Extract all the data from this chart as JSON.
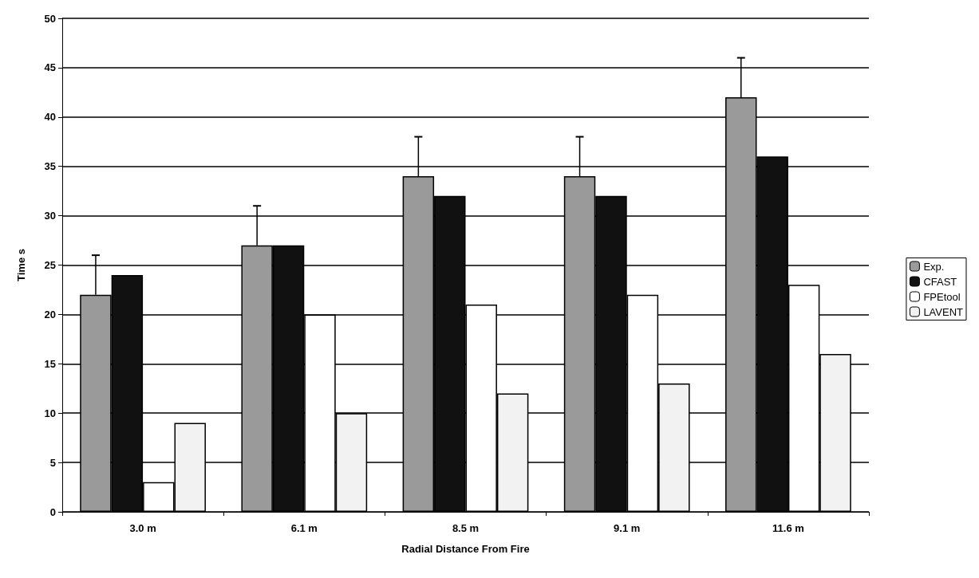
{
  "chart_data": {
    "type": "bar",
    "xlabel": "Radial Distance From Fire",
    "ylabel": "Time s",
    "categories": [
      "3.0 m",
      "6.1 m",
      "8.5 m",
      "9.1 m",
      "11.6 m"
    ],
    "series": [
      {
        "name": "Exp.",
        "color": "#9a9a9a",
        "values": [
          22,
          27,
          34,
          34,
          42
        ],
        "errors": [
          [
            22,
            26
          ],
          [
            27,
            31
          ],
          [
            34,
            38
          ],
          [
            34,
            38
          ],
          [
            42,
            46
          ]
        ]
      },
      {
        "name": "CFAST",
        "color": "#111111",
        "values": [
          24,
          27,
          32,
          32,
          36
        ]
      },
      {
        "name": "FPEtool",
        "color": "#ffffff",
        "values": [
          3,
          20,
          21,
          22,
          23
        ]
      },
      {
        "name": "LAVENT",
        "color": "#f2f2f2",
        "values": [
          9,
          10,
          12,
          13,
          16
        ]
      }
    ],
    "ylim": [
      0,
      50
    ],
    "yticks": [
      0,
      5,
      10,
      15,
      20,
      25,
      30,
      35,
      40,
      45,
      50
    ],
    "grid": "y",
    "legend": "right"
  }
}
